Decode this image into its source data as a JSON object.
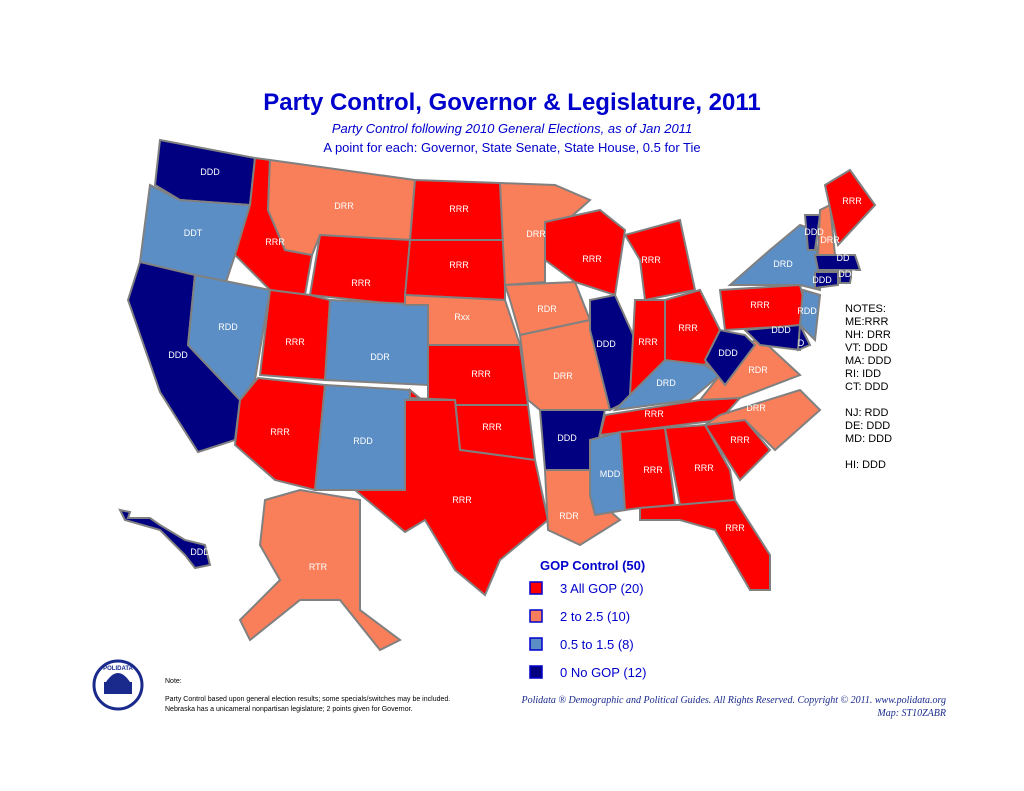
{
  "header": {
    "title": "Party Control, Governor & Legislature, 2011",
    "subtitle": "Party Control following 2010 General Elections, as of Jan 2011",
    "description": "A point for each: Governor, State Senate, State House, 0.5 for Tie"
  },
  "states": [
    {
      "label": "DDD",
      "color": "#000080"
    },
    {
      "label": "DDT",
      "color": "#5b8ec5"
    },
    {
      "label": "DDD",
      "color": "#000080"
    },
    {
      "label": "RDD",
      "color": "#5b8ec5"
    },
    {
      "label": "RRR",
      "color": "#ff0000"
    },
    {
      "label": "DRR",
      "color": "#f87f5a"
    },
    {
      "label": "RRR",
      "color": "#ff0000"
    },
    {
      "label": "RRR",
      "color": "#ff0000"
    },
    {
      "label": "RRR",
      "color": "#ff0000"
    },
    {
      "label": "DDR",
      "color": "#5b8ec5"
    },
    {
      "label": "RDD",
      "color": "#5b8ec5"
    },
    {
      "label": "RRR",
      "color": "#ff0000"
    },
    {
      "label": "RRR",
      "color": "#ff0000"
    },
    {
      "label": "Rxx",
      "color": "#f87f5a"
    },
    {
      "label": "RRR",
      "color": "#ff0000"
    },
    {
      "label": "RRR",
      "color": "#ff0000"
    },
    {
      "label": "RRR",
      "color": "#ff0000"
    },
    {
      "label": "DRR",
      "color": "#f87f5a"
    },
    {
      "label": "RDR",
      "color": "#f87f5a"
    },
    {
      "label": "DRR",
      "color": "#f87f5a"
    },
    {
      "label": "DDD",
      "color": "#000080"
    },
    {
      "label": "RDR",
      "color": "#f87f5a"
    },
    {
      "label": "RRR",
      "color": "#ff0000"
    },
    {
      "label": "DDD",
      "color": "#000080"
    },
    {
      "label": "RRR",
      "color": "#ff0000"
    },
    {
      "label": "RRR",
      "color": "#ff0000"
    },
    {
      "label": "RRR",
      "color": "#ff0000"
    },
    {
      "label": "DRD",
      "color": "#5b8ec5"
    },
    {
      "label": "RRR",
      "color": "#ff0000"
    },
    {
      "label": "MDD",
      "color": "#5b8ec5"
    },
    {
      "label": "RRR",
      "color": "#ff0000"
    },
    {
      "label": "RRR",
      "color": "#ff0000"
    },
    {
      "label": "RRR",
      "color": "#ff0000"
    },
    {
      "label": "RRR",
      "color": "#ff0000"
    },
    {
      "label": "DRR",
      "color": "#f87f5a"
    },
    {
      "label": "RDR",
      "color": "#f87f5a"
    },
    {
      "label": "DDD",
      "color": "#000080"
    },
    {
      "label": "RRR",
      "color": "#ff0000"
    },
    {
      "label": "DRD",
      "color": "#5b8ec5"
    },
    {
      "label": "RDD",
      "color": "#5b8ec5"
    },
    {
      "label": "DDD",
      "color": "#000080"
    },
    {
      "label": "D",
      "color": "#000080"
    },
    {
      "label": "DDD",
      "color": "#000080"
    },
    {
      "label": "DRR",
      "color": "#f87f5a"
    },
    {
      "label": "RRR",
      "color": "#ff0000"
    },
    {
      "label": "DD",
      "color": "#000080"
    },
    {
      "label": "DDD",
      "color": "#000080"
    },
    {
      "label": "DDD",
      "color": "#000080"
    },
    {
      "label": "DDD",
      "color": "#000080"
    },
    {
      "label": "RTR",
      "color": "#f87f5a"
    }
  ],
  "notes": [
    "NOTES:",
    "ME:RRR",
    "NH: DRR",
    "VT: DDD",
    "MA: DDD",
    "RI: IDD",
    "CT: DDD",
    "NJ: RDD",
    "DE: DDD",
    "MD: DDD",
    "HI: DDD"
  ],
  "legend": {
    "title": "GOP Control (50)",
    "items": [
      {
        "label": "3 All GOP (20)",
        "color": "#ff0000"
      },
      {
        "label": "2  to 2.5 (10)",
        "color": "#f87f5a"
      },
      {
        "label": "0.5 to 1.5 (8)",
        "color": "#5b8ec5"
      },
      {
        "label": "0 No GOP (12)",
        "color": "#000080"
      }
    ]
  },
  "footer": {
    "logo": "POLIDATA",
    "note_title": "Note:",
    "note_lines": [
      "Party Control based upon general election results; some specials/switches may be included.",
      "Nebraska has a unicameral nonpartisan legislature;  2 points given for Governor."
    ],
    "copyright": "Polidata ®  Demographic and Political Guides. All Rights Reserved. Copyright © 2011. www.polidata.org",
    "map_id": "Map: ST10ZABR"
  }
}
